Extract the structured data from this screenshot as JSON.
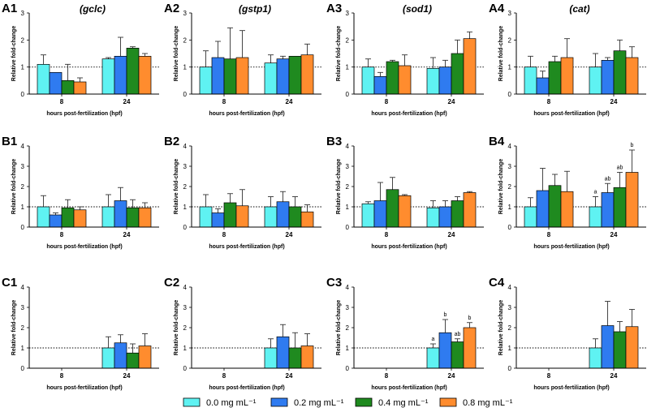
{
  "colors": {
    "series": [
      "#5ff2f2",
      "#2f7bf0",
      "#1f8a1f",
      "#ff8c2e"
    ],
    "axis": "#000000",
    "error": "#333333"
  },
  "chart_data": [
    {
      "type": "bar",
      "label": "A1",
      "gene": "(gclc)",
      "categories": [
        "8",
        "24"
      ],
      "ylim": [
        0,
        3
      ],
      "yticks": [
        "0",
        "1",
        "2",
        "3"
      ],
      "ylabel": "Relative fold-change",
      "xlabel": "hours post-fertilization (hpf)",
      "series": [
        {
          "name": "0.0 mg mL⁻¹",
          "values": [
            1.1,
            1.3
          ],
          "errors": [
            0.35,
            0.05
          ]
        },
        {
          "name": "0.2 mg mL⁻¹",
          "values": [
            0.8,
            1.4
          ],
          "errors": [
            0.0,
            0.7
          ]
        },
        {
          "name": "0.4 mg mL⁻¹",
          "values": [
            0.5,
            1.7
          ],
          "errors": [
            0.6,
            0.05
          ]
        },
        {
          "name": "0.8 mg mL⁻¹",
          "values": [
            0.45,
            1.4
          ],
          "errors": [
            0.15,
            0.1
          ]
        }
      ],
      "sig": []
    },
    {
      "type": "bar",
      "label": "A2",
      "gene": "(gstp1)",
      "categories": [
        "8",
        "24"
      ],
      "ylim": [
        0,
        3
      ],
      "yticks": [
        "0",
        "1",
        "2",
        "3"
      ],
      "ylabel": "Relative fold-change",
      "xlabel": "hours post-fertilization (hpf)",
      "series": [
        {
          "name": "0.0 mg mL⁻¹",
          "values": [
            1.0,
            1.15
          ],
          "errors": [
            0.6,
            0.3
          ]
        },
        {
          "name": "0.2 mg mL⁻¹",
          "values": [
            1.35,
            1.3
          ],
          "errors": [
            0.6,
            0.1
          ]
        },
        {
          "name": "0.4 mg mL⁻¹",
          "values": [
            1.3,
            1.4
          ],
          "errors": [
            1.15,
            0.0
          ]
        },
        {
          "name": "0.8 mg mL⁻¹",
          "values": [
            1.35,
            1.45
          ],
          "errors": [
            1.0,
            0.4
          ]
        }
      ],
      "sig": []
    },
    {
      "type": "bar",
      "label": "A3",
      "gene": "(sod1)",
      "categories": [
        "8",
        "24"
      ],
      "ylim": [
        0,
        3
      ],
      "yticks": [
        "0",
        "1",
        "2",
        "3"
      ],
      "ylabel": "Relative fold-change",
      "xlabel": "hours post-fertilization (hpf)",
      "series": [
        {
          "name": "0.0 mg mL⁻¹",
          "values": [
            1.0,
            0.95
          ],
          "errors": [
            0.3,
            0.4
          ]
        },
        {
          "name": "0.2 mg mL⁻¹",
          "values": [
            0.65,
            1.0
          ],
          "errors": [
            0.15,
            0.25
          ]
        },
        {
          "name": "0.4 mg mL⁻¹",
          "values": [
            1.2,
            1.5
          ],
          "errors": [
            0.05,
            0.5
          ]
        },
        {
          "name": "0.8 mg mL⁻¹",
          "values": [
            1.05,
            2.05
          ],
          "errors": [
            0.4,
            0.25
          ]
        }
      ],
      "sig": []
    },
    {
      "type": "bar",
      "label": "A4",
      "gene": "(cat)",
      "categories": [
        "8",
        "24"
      ],
      "ylim": [
        0,
        3
      ],
      "yticks": [
        "0",
        "1",
        "2",
        "3"
      ],
      "ylabel": "Relative fold-change",
      "xlabel": "hours post-fertilization (hpf)",
      "series": [
        {
          "name": "0.0 mg mL⁻¹",
          "values": [
            1.0,
            1.0
          ],
          "errors": [
            0.4,
            0.5
          ]
        },
        {
          "name": "0.2 mg mL⁻¹",
          "values": [
            0.6,
            1.25
          ],
          "errors": [
            0.25,
            0.1
          ]
        },
        {
          "name": "0.4 mg mL⁻¹",
          "values": [
            1.2,
            1.6
          ],
          "errors": [
            0.2,
            0.4
          ]
        },
        {
          "name": "0.8 mg mL⁻¹",
          "values": [
            1.35,
            1.35
          ],
          "errors": [
            0.7,
            0.4
          ]
        }
      ],
      "sig": []
    },
    {
      "type": "bar",
      "label": "B1",
      "gene": "",
      "categories": [
        "8",
        "24"
      ],
      "ylim": [
        0,
        4
      ],
      "yticks": [
        "0",
        "1",
        "2",
        "3",
        "4"
      ],
      "ylabel": "Relative fold-change",
      "xlabel": "hours post-fertilization (hpf)",
      "series": [
        {
          "name": "0.0 mg mL⁻¹",
          "values": [
            1.0,
            1.0
          ],
          "errors": [
            0.55,
            0.6
          ]
        },
        {
          "name": "0.2 mg mL⁻¹",
          "values": [
            0.6,
            1.3
          ],
          "errors": [
            0.1,
            0.65
          ]
        },
        {
          "name": "0.4 mg mL⁻¹",
          "values": [
            0.95,
            0.95
          ],
          "errors": [
            0.4,
            0.4
          ]
        },
        {
          "name": "0.8 mg mL⁻¹",
          "values": [
            0.85,
            0.95
          ],
          "errors": [
            0.15,
            0.25
          ]
        }
      ],
      "sig": []
    },
    {
      "type": "bar",
      "label": "B2",
      "gene": "",
      "categories": [
        "8",
        "24"
      ],
      "ylim": [
        0,
        4
      ],
      "yticks": [
        "0",
        "1",
        "2",
        "3",
        "4"
      ],
      "ylabel": "Relative fold-change",
      "xlabel": "hours post-fertilization (hpf)",
      "series": [
        {
          "name": "0.0 mg mL⁻¹",
          "values": [
            1.0,
            1.0
          ],
          "errors": [
            0.6,
            0.5
          ]
        },
        {
          "name": "0.2 mg mL⁻¹",
          "values": [
            0.7,
            1.25
          ],
          "errors": [
            0.2,
            0.5
          ]
        },
        {
          "name": "0.4 mg mL⁻¹",
          "values": [
            1.2,
            1.0
          ],
          "errors": [
            0.45,
            0.5
          ]
        },
        {
          "name": "0.8 mg mL⁻¹",
          "values": [
            1.05,
            0.75
          ],
          "errors": [
            0.8,
            0.35
          ]
        }
      ],
      "sig": []
    },
    {
      "type": "bar",
      "label": "B3",
      "gene": "",
      "categories": [
        "8",
        "24"
      ],
      "ylim": [
        0,
        4
      ],
      "yticks": [
        "0",
        "1",
        "2",
        "3",
        "4"
      ],
      "ylabel": "Relative fold-change",
      "xlabel": "hours post-fertilization (hpf)",
      "series": [
        {
          "name": "0.0 mg mL⁻¹",
          "values": [
            1.15,
            0.95
          ],
          "errors": [
            0.1,
            0.35
          ]
        },
        {
          "name": "0.2 mg mL⁻¹",
          "values": [
            1.3,
            1.0
          ],
          "errors": [
            0.9,
            0.3
          ]
        },
        {
          "name": "0.4 mg mL⁻¹",
          "values": [
            1.85,
            1.3
          ],
          "errors": [
            0.6,
            0.2
          ]
        },
        {
          "name": "0.8 mg mL⁻¹",
          "values": [
            1.55,
            1.7
          ],
          "errors": [
            0.05,
            0.05
          ]
        }
      ],
      "sig": []
    },
    {
      "type": "bar",
      "label": "B4",
      "gene": "",
      "categories": [
        "8",
        "24"
      ],
      "ylim": [
        0,
        4
      ],
      "yticks": [
        "0",
        "1",
        "2",
        "3",
        "4"
      ],
      "ylabel": "Relative fold-change",
      "xlabel": "hours post-fertilization (hpf)",
      "series": [
        {
          "name": "0.0 mg mL⁻¹",
          "values": [
            1.0,
            1.0
          ],
          "errors": [
            0.45,
            0.5
          ]
        },
        {
          "name": "0.2 mg mL⁻¹",
          "values": [
            1.8,
            1.7
          ],
          "errors": [
            1.1,
            0.45
          ]
        },
        {
          "name": "0.4 mg mL⁻¹",
          "values": [
            2.05,
            1.95
          ],
          "errors": [
            0.55,
            0.75
          ]
        },
        {
          "name": "0.8 mg mL⁻¹",
          "values": [
            1.75,
            2.7
          ],
          "errors": [
            1.0,
            1.1
          ]
        }
      ],
      "sig": [
        {
          "group": 1,
          "series": 0,
          "text": "a"
        },
        {
          "group": 1,
          "series": 1,
          "text": "ab"
        },
        {
          "group": 1,
          "series": 2,
          "text": "ab"
        },
        {
          "group": 1,
          "series": 3,
          "text": "b"
        }
      ]
    },
    {
      "type": "bar",
      "label": "C1",
      "gene": "",
      "categories": [
        "8",
        "24"
      ],
      "ylim": [
        0,
        4
      ],
      "yticks": [
        "0",
        "1",
        "2",
        "3",
        "4"
      ],
      "ylabel": "Relative fold-change",
      "xlabel": "hours post-fertilization (hpf)",
      "series": [
        {
          "name": "0.0 mg mL⁻¹",
          "values": [
            null,
            1.0
          ],
          "errors": [
            null,
            0.55
          ]
        },
        {
          "name": "0.2 mg mL⁻¹",
          "values": [
            null,
            1.25
          ],
          "errors": [
            null,
            0.4
          ]
        },
        {
          "name": "0.4 mg mL⁻¹",
          "values": [
            null,
            0.75
          ],
          "errors": [
            null,
            0.45
          ]
        },
        {
          "name": "0.8 mg mL⁻¹",
          "values": [
            null,
            1.1
          ],
          "errors": [
            null,
            0.6
          ]
        }
      ],
      "sig": []
    },
    {
      "type": "bar",
      "label": "C2",
      "gene": "",
      "categories": [
        "8",
        "24"
      ],
      "ylim": [
        0,
        4
      ],
      "yticks": [
        "0",
        "1",
        "2",
        "3",
        "4"
      ],
      "ylabel": "Relative fold-change",
      "xlabel": "hours post-fertilization (hpf)",
      "series": [
        {
          "name": "0.0 mg mL⁻¹",
          "values": [
            null,
            1.0
          ],
          "errors": [
            null,
            0.45
          ]
        },
        {
          "name": "0.2 mg mL⁻¹",
          "values": [
            null,
            1.55
          ],
          "errors": [
            null,
            0.6
          ]
        },
        {
          "name": "0.4 mg mL⁻¹",
          "values": [
            null,
            1.0
          ],
          "errors": [
            null,
            0.75
          ]
        },
        {
          "name": "0.8 mg mL⁻¹",
          "values": [
            null,
            1.1
          ],
          "errors": [
            null,
            0.6
          ]
        }
      ],
      "sig": []
    },
    {
      "type": "bar",
      "label": "C3",
      "gene": "",
      "categories": [
        "8",
        "24"
      ],
      "ylim": [
        0,
        4
      ],
      "yticks": [
        "0",
        "1",
        "2",
        "3",
        "4"
      ],
      "ylabel": "Relative fold-change",
      "xlabel": "hours post-fertilization (hpf)",
      "series": [
        {
          "name": "0.0 mg mL⁻¹",
          "values": [
            null,
            1.0
          ],
          "errors": [
            null,
            0.2
          ]
        },
        {
          "name": "0.2 mg mL⁻¹",
          "values": [
            null,
            1.75
          ],
          "errors": [
            null,
            0.65
          ]
        },
        {
          "name": "0.4 mg mL⁻¹",
          "values": [
            null,
            1.3
          ],
          "errors": [
            null,
            0.15
          ]
        },
        {
          "name": "0.8 mg mL⁻¹",
          "values": [
            null,
            2.0
          ],
          "errors": [
            null,
            0.25
          ]
        }
      ],
      "sig": [
        {
          "group": 1,
          "series": 0,
          "text": "a"
        },
        {
          "group": 1,
          "series": 1,
          "text": "b"
        },
        {
          "group": 1,
          "series": 2,
          "text": "ab"
        },
        {
          "group": 1,
          "series": 3,
          "text": "b"
        }
      ]
    },
    {
      "type": "bar",
      "label": "C4",
      "gene": "",
      "categories": [
        "8",
        "24"
      ],
      "ylim": [
        0,
        4
      ],
      "yticks": [
        "0",
        "1",
        "2",
        "3",
        "4"
      ],
      "ylabel": "Relative fold-change",
      "xlabel": "hours post-fertilization (hpf)",
      "series": [
        {
          "name": "0.0 mg mL⁻¹",
          "values": [
            null,
            1.0
          ],
          "errors": [
            null,
            0.45
          ]
        },
        {
          "name": "0.2 mg mL⁻¹",
          "values": [
            null,
            2.1
          ],
          "errors": [
            null,
            1.2
          ]
        },
        {
          "name": "0.4 mg mL⁻¹",
          "values": [
            null,
            1.8
          ],
          "errors": [
            null,
            0.5
          ]
        },
        {
          "name": "0.8 mg mL⁻¹",
          "values": [
            null,
            2.05
          ],
          "errors": [
            null,
            0.85
          ]
        }
      ],
      "sig": []
    }
  ],
  "legend": [
    {
      "label": "0.0 mg mL⁻¹"
    },
    {
      "label": "0.2 mg mL⁻¹"
    },
    {
      "label": "0.4 mg mL⁻¹"
    },
    {
      "label": "0.8 mg mL⁻¹"
    }
  ]
}
